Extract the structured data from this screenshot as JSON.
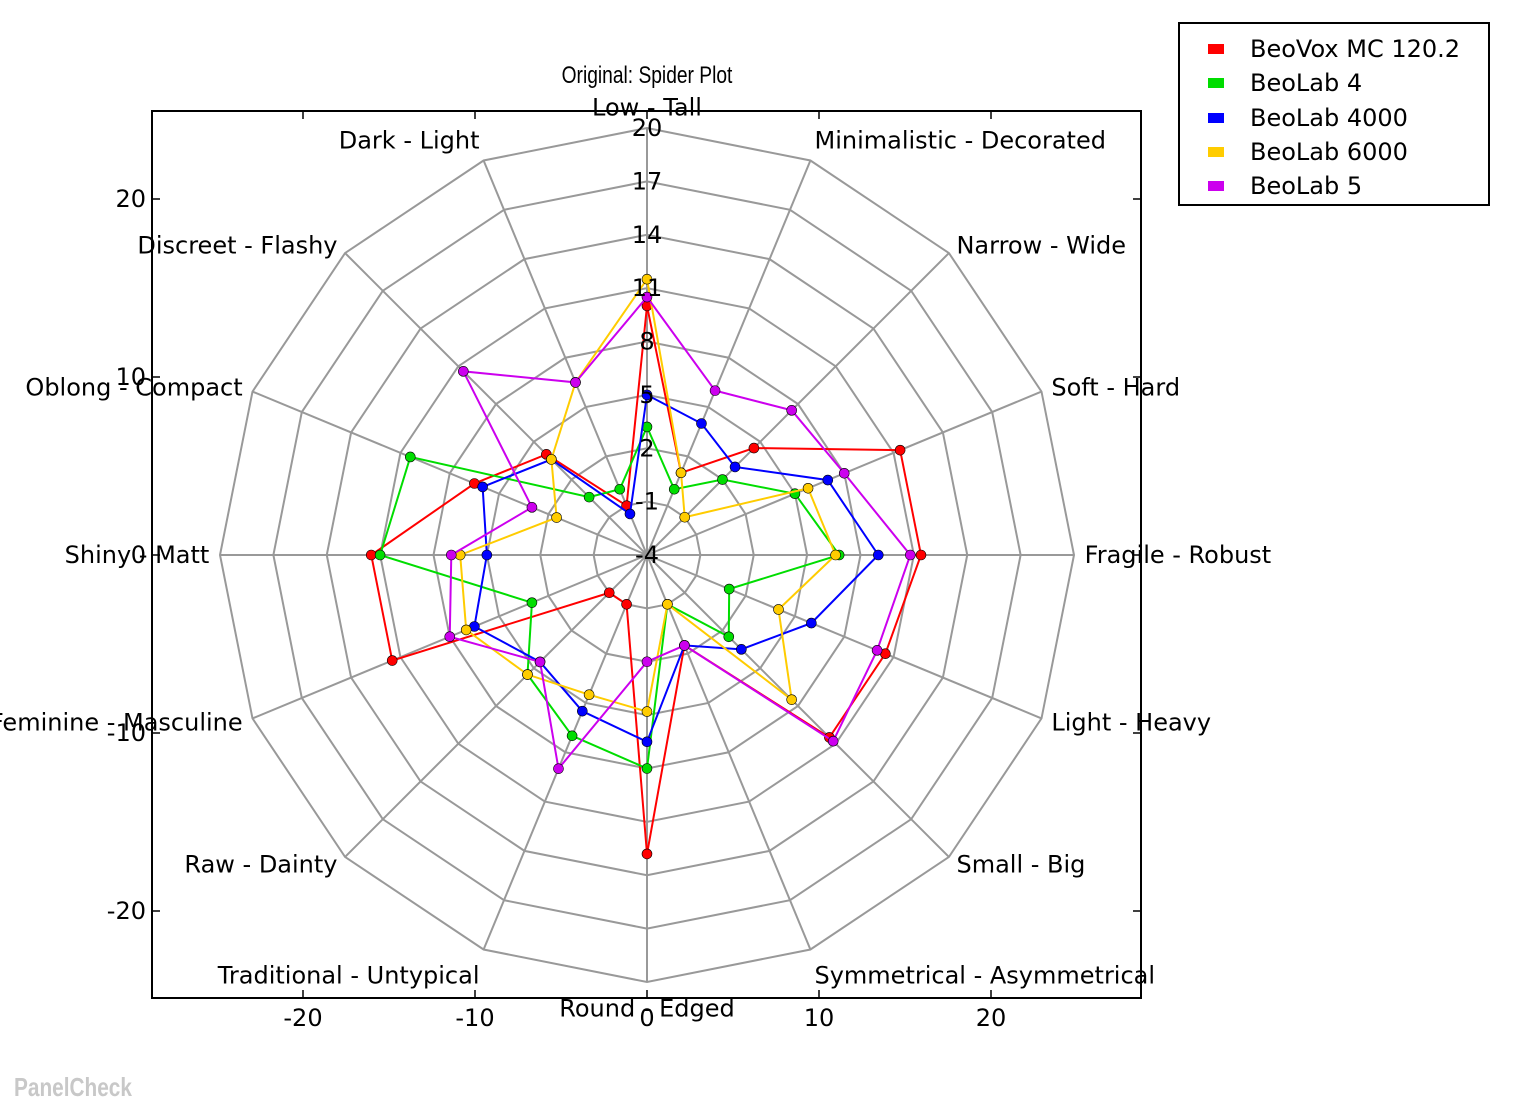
{
  "chart_data": {
    "type": "radar",
    "title": "Original: Spider Plot",
    "axes": [
      "Fragile - Robust",
      "Soft - Hard",
      "Narrow - Wide",
      "Minimalistic - Decorated",
      "Low - Tall",
      "Dark - Light",
      "Discreet - Flashy",
      "Oblong - Compact",
      "Shiny - Matt",
      "Feminine - Masculine",
      "Raw - Dainty",
      "Traditional - Untypical",
      "Round - Edged",
      "Symmetrical - Asymmetrical",
      "Small - Big",
      "Light - Heavy"
    ],
    "radial_ticks": [
      -4,
      -1,
      2,
      5,
      8,
      11,
      17,
      14,
      20
    ],
    "radial_range": [
      -4,
      20
    ],
    "x_ticks": [
      -20,
      -10,
      0,
      10,
      20
    ],
    "y_ticks": [
      -20,
      -10,
      0,
      10,
      20
    ],
    "xlim": [
      -29,
      29
    ],
    "ylim": [
      -25,
      25
    ],
    "series": [
      {
        "name": "BeoVox MC 120.2",
        "color": "#ff0000",
        "values": [
          11.4,
          11.4,
          4.5,
          1.0,
          10.0,
          -1.0,
          4.0,
          6.5,
          11.5,
          11.5,
          -1.0,
          -1.0,
          12.8,
          1.5,
          10.5,
          10.5
        ]
      },
      {
        "name": "BeoLab 4",
        "color": "#00dd00",
        "values": [
          6.8,
          5.0,
          2.0,
          0.0,
          3.2,
          0.0,
          0.6,
          10.4,
          11.0,
          3.0,
          5.5,
          7.0,
          8.0,
          -1.0,
          2.5,
          1.0
        ]
      },
      {
        "name": "BeoLab 4000",
        "color": "#0000ff",
        "values": [
          9.0,
          7.0,
          3.0,
          4.0,
          5.0,
          -1.5,
          3.6,
          6.0,
          5.0,
          6.5,
          4.5,
          5.5,
          6.5,
          1.5,
          3.5,
          6.0
        ]
      },
      {
        "name": "BeoLab 6000",
        "color": "#ffcc00",
        "values": [
          6.6,
          5.8,
          -1.0,
          1.0,
          11.5,
          6.5,
          3.6,
          1.5,
          6.5,
          7.0,
          5.5,
          4.5,
          4.8,
          -1.0,
          7.5,
          4.0
        ]
      },
      {
        "name": "BeoLab 5",
        "color": "#cc00ee",
        "values": [
          10.8,
          8.0,
          7.5,
          6.0,
          10.5,
          6.5,
          10.6,
          3.0,
          7.0,
          8.0,
          4.5,
          9.0,
          2.0,
          1.5,
          10.8,
          10.0
        ]
      }
    ],
    "legend_position": "top-right, outside plot",
    "grid": true,
    "watermark": "PanelCheck"
  }
}
